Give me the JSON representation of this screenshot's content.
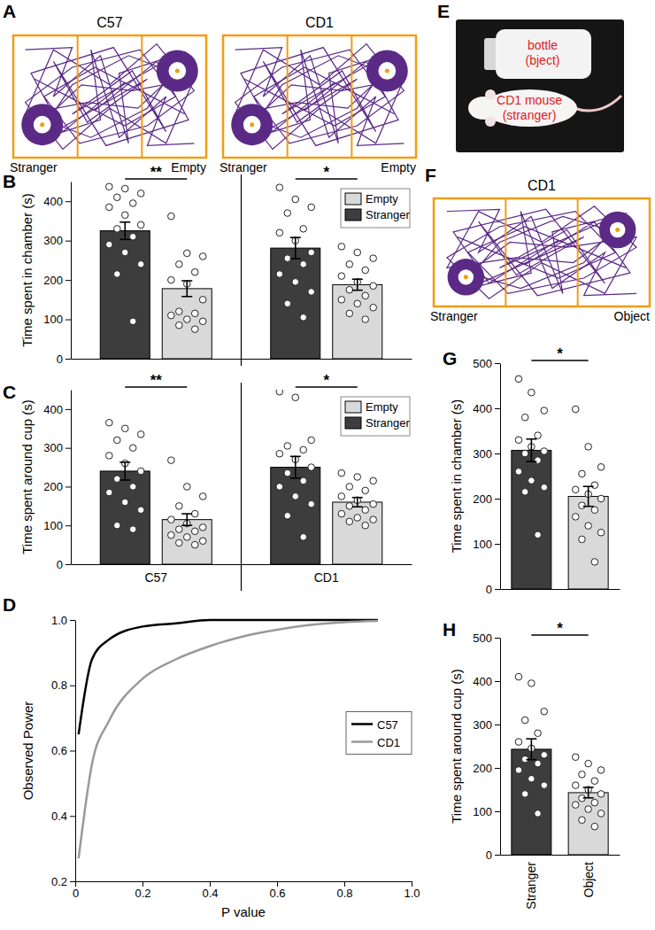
{
  "figure": {
    "A": {
      "panel": "A",
      "tracks": [
        {
          "title": "C57",
          "labels": [
            "Stranger",
            "Empty"
          ]
        },
        {
          "title": "CD1",
          "labels": [
            "Stranger",
            "Empty"
          ]
        }
      ]
    },
    "E": {
      "panel": "E",
      "labels": [
        [
          "bottle",
          "(bject)"
        ],
        [
          "CD1 mouse",
          "(stranger)"
        ]
      ]
    },
    "F": {
      "panel": "F",
      "title": "CD1",
      "labels": [
        "Stranger",
        "Object"
      ]
    }
  },
  "chart_data": [
    {
      "type": "bar",
      "panel": "B",
      "ylabel": "Time spent in chamber (s)",
      "categories": [
        null,
        null
      ],
      "series": [
        {
          "name": "Stranger",
          "color": "#3d3d3d",
          "values": [
            325,
            281
          ],
          "errors": [
            22,
            27
          ],
          "points": [
            [
              437,
              432,
              420,
              410,
              395,
              385,
              365,
              340,
              330,
              310,
              290,
              270,
              240,
              215,
              95
            ],
            [
              435,
              405,
              385,
              370,
              330,
              320,
              300,
              270,
              255,
              240,
              215,
              195,
              170,
              140,
              105
            ]
          ]
        },
        {
          "name": "Empty",
          "color": "#d9d9d9",
          "values": [
            178,
            188
          ],
          "errors": [
            20,
            14
          ],
          "points": [
            [
              362,
              268,
              260,
              240,
              220,
              200,
              190,
              150,
              120,
              115,
              110,
              100,
              95,
              85,
              75
            ],
            [
              285,
              270,
              255,
              240,
              225,
              210,
              195,
              185,
              175,
              160,
              150,
              140,
              130,
              115,
              100
            ]
          ]
        }
      ],
      "annotations": [
        "**",
        "*"
      ],
      "ylim": [
        0,
        450
      ],
      "yticks": [
        0,
        100,
        200,
        300,
        400
      ],
      "legend": "upper right"
    },
    {
      "type": "bar",
      "panel": "C",
      "ylabel": "Time spent around cup (s)",
      "categories": [
        "C57",
        "CD1"
      ],
      "series": [
        {
          "name": "Stranger",
          "color": "#3d3d3d",
          "values": [
            240,
            250
          ],
          "errors": [
            23,
            28
          ],
          "points": [
            [
              365,
              350,
              335,
              320,
              300,
              280,
              260,
              240,
              220,
              200,
              185,
              160,
              140,
              100,
              90
            ],
            [
              445,
              430,
              320,
              305,
              295,
              285,
              270,
              250,
              235,
              215,
              200,
              175,
              155,
              125,
              70
            ]
          ]
        },
        {
          "name": "Empty",
          "color": "#d9d9d9",
          "values": [
            115,
            160
          ],
          "errors": [
            15,
            12
          ],
          "points": [
            [
              268,
              200,
              175,
              150,
              130,
              115,
              105,
              95,
              90,
              85,
              75,
              70,
              60,
              55,
              50
            ],
            [
              235,
              225,
              215,
              200,
              190,
              175,
              165,
              155,
              150,
              140,
              130,
              120,
              115,
              110,
              100
            ]
          ]
        }
      ],
      "annotations": [
        "**",
        "*"
      ],
      "ylim": [
        0,
        450
      ],
      "yticks": [
        0,
        100,
        200,
        300,
        400
      ],
      "legend": "upper right"
    },
    {
      "type": "line",
      "panel": "D",
      "xlabel": "P value",
      "ylabel": "Observed Power",
      "x": [
        0.01,
        0.05,
        0.1,
        0.2,
        0.3,
        0.4,
        0.5,
        0.6,
        0.7,
        0.8,
        0.9
      ],
      "series": [
        {
          "name": "C57",
          "color": "#000000",
          "values": [
            0.65,
            0.88,
            0.94,
            0.98,
            0.99,
            1.0,
            1.0,
            1.0,
            1.0,
            1.0,
            1.0
          ]
        },
        {
          "name": "CD1",
          "color": "#999999",
          "values": [
            0.27,
            0.56,
            0.69,
            0.82,
            0.88,
            0.92,
            0.95,
            0.97,
            0.985,
            0.993,
            0.997
          ]
        }
      ],
      "xlim": [
        0,
        1
      ],
      "xticks": [
        0,
        0.2,
        0.4,
        0.6,
        0.8,
        {
          "value": 1,
          "label": "1.0"
        }
      ],
      "ylim": [
        0.2,
        1
      ],
      "yticks": [
        0.2,
        0.4,
        0.6,
        0.8,
        {
          "value": 1,
          "label": "1.0"
        }
      ],
      "legend": "center right"
    },
    {
      "type": "bar",
      "panel": "G",
      "ylabel": "Time spent in chamber (s)",
      "categories": [
        null,
        null
      ],
      "series": [
        {
          "colors": [
            "#3d3d3d",
            "#d9d9d9"
          ],
          "values": [
            307,
            205
          ],
          "errors": [
            25,
            22
          ],
          "points": [
            [
              465,
              435,
              395,
              380,
              340,
              330,
              315,
              305,
              300,
              285,
              260,
              240,
              225,
              215,
              120
            ],
            [
              398,
              315,
              270,
              255,
              230,
              220,
              210,
              200,
              185,
              175,
              160,
              140,
              125,
              110,
              60
            ]
          ]
        }
      ],
      "annotations": [
        "*"
      ],
      "ylim": [
        0,
        500
      ],
      "yticks": [
        0,
        100,
        200,
        300,
        400,
        500
      ]
    },
    {
      "type": "bar",
      "panel": "H",
      "ylabel": "Time spent around cup (s)",
      "categories": [
        "Stranger",
        "Object"
      ],
      "series": [
        {
          "colors": [
            "#3d3d3d",
            "#d9d9d9"
          ],
          "values": [
            243,
            143
          ],
          "errors": [
            24,
            12
          ],
          "points": [
            [
              410,
              395,
              330,
              310,
              280,
              260,
              245,
              230,
              220,
              210,
              195,
              175,
              160,
              140,
              95
            ],
            [
              225,
              210,
              195,
              185,
              170,
              160,
              150,
              140,
              130,
              120,
              115,
              105,
              95,
              80,
              65
            ]
          ]
        }
      ],
      "annotations": [
        "*"
      ],
      "ylim": [
        0,
        500
      ],
      "yticks": [
        0,
        100,
        200,
        300,
        400,
        500
      ]
    }
  ]
}
